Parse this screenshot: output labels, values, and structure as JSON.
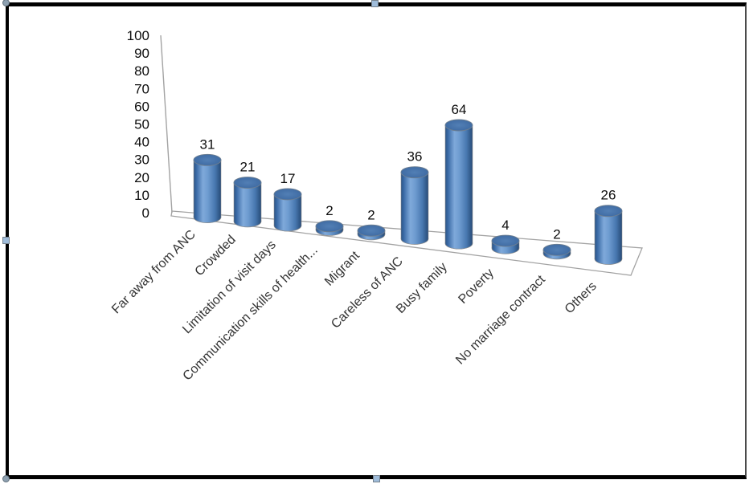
{
  "picture": {
    "border_color": "#000000",
    "background": "#ffffff",
    "selected": true
  },
  "chart_data": {
    "type": "bar",
    "subtype": "cylinder-3d",
    "title": "",
    "xlabel": "",
    "ylabel": "",
    "legend": "none",
    "grid": false,
    "bar_color": "#4f81bd",
    "ylim": [
      0,
      100
    ],
    "y_ticks": [
      0,
      10,
      20,
      30,
      40,
      50,
      60,
      70,
      80,
      90,
      100
    ],
    "categories": [
      "Far away from ANC",
      "Crowded",
      "Limitation of visit days",
      "Communication skills of health...",
      "Migrant",
      "Careless of ANC",
      "Busy family",
      "Poverty",
      "No marriage contract",
      "Others"
    ],
    "values": [
      31,
      21,
      17,
      2,
      2,
      36,
      64,
      4,
      2,
      26
    ],
    "data_labels": [
      "31",
      "21",
      "17",
      "2",
      "2",
      "36",
      "64",
      "4",
      "2",
      "26"
    ]
  }
}
